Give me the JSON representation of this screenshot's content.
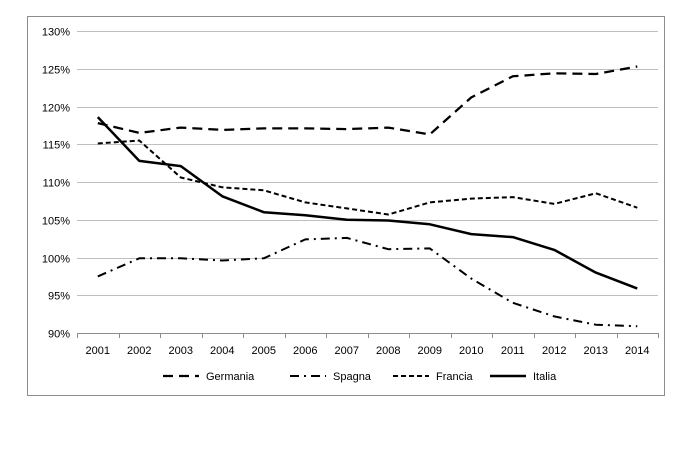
{
  "chart_data": {
    "type": "line",
    "title": "",
    "xlabel": "",
    "ylabel": "",
    "categories": [
      "2001",
      "2002",
      "2003",
      "2004",
      "2005",
      "2006",
      "2007",
      "2008",
      "2009",
      "2010",
      "2011",
      "2012",
      "2013",
      "2014"
    ],
    "ylim": [
      90,
      130
    ],
    "yticks": [
      90,
      95,
      100,
      105,
      110,
      115,
      120,
      125,
      130
    ],
    "ytick_labels": [
      "90%",
      "95%",
      "100%",
      "105%",
      "110%",
      "115%",
      "120%",
      "125%",
      "130%"
    ],
    "grid": "horizontal",
    "legend_position": "bottom",
    "series": [
      {
        "name": "Germania",
        "style": "dashed",
        "color": "#000000",
        "values": [
          117.8,
          116.5,
          117.2,
          116.9,
          117.1,
          117.1,
          117.0,
          117.2,
          116.3,
          121.2,
          124.0,
          124.4,
          124.3,
          125.3
        ]
      },
      {
        "name": "Spagna",
        "style": "dash-dot",
        "color": "#000000",
        "values": [
          97.5,
          99.9,
          99.9,
          99.6,
          99.9,
          102.4,
          102.6,
          101.1,
          101.2,
          97.2,
          94.0,
          92.2,
          91.1,
          90.9
        ]
      },
      {
        "name": "Francia",
        "style": "dotted-dash",
        "color": "#000000",
        "values": [
          115.1,
          115.5,
          110.6,
          109.3,
          108.9,
          107.3,
          106.5,
          105.7,
          107.3,
          107.8,
          108.0,
          107.1,
          108.5,
          106.6
        ]
      },
      {
        "name": "Italia",
        "style": "solid",
        "color": "#000000",
        "values": [
          118.6,
          112.8,
          112.1,
          108.1,
          106.0,
          105.6,
          105.0,
          104.9,
          104.4,
          103.1,
          102.7,
          101.0,
          98.0,
          95.9
        ]
      }
    ]
  }
}
